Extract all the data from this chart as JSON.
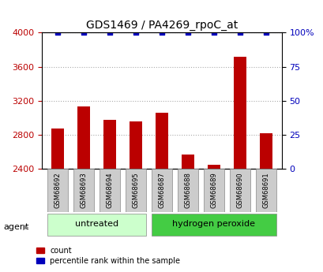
{
  "title": "GDS1469 / PA4269_rpoC_at",
  "samples": [
    "GSM68692",
    "GSM68693",
    "GSM68694",
    "GSM68695",
    "GSM68687",
    "GSM68688",
    "GSM68689",
    "GSM68690",
    "GSM68691"
  ],
  "counts": [
    2870,
    3130,
    2970,
    2960,
    3060,
    2570,
    2450,
    3720,
    2820
  ],
  "percentiles": [
    100,
    100,
    100,
    100,
    100,
    100,
    100,
    100,
    100
  ],
  "ylim_left": [
    2400,
    4000
  ],
  "ylim_right": [
    0,
    100
  ],
  "yticks_left": [
    2400,
    2800,
    3200,
    3600,
    4000
  ],
  "yticks_right": [
    0,
    25,
    50,
    75,
    100
  ],
  "ytick_labels_right": [
    "0",
    "25",
    "50",
    "75",
    "100%"
  ],
  "bar_color": "#bb0000",
  "dot_color": "#0000bb",
  "bar_baseline": 2400,
  "groups": [
    {
      "label": "untreated",
      "indices": [
        0,
        1,
        2,
        3
      ],
      "color": "#ccffcc"
    },
    {
      "label": "hydrogen peroxide",
      "indices": [
        4,
        5,
        6,
        7,
        8
      ],
      "color": "#44cc44"
    }
  ],
  "agent_label": "agent",
  "legend_count_label": "count",
  "legend_pct_label": "percentile rank within the sample",
  "grid_color": "#aaaaaa",
  "tick_label_color_left": "#bb0000",
  "tick_label_color_right": "#0000bb",
  "sample_box_color": "#cccccc",
  "sample_box_edge": "#888888"
}
